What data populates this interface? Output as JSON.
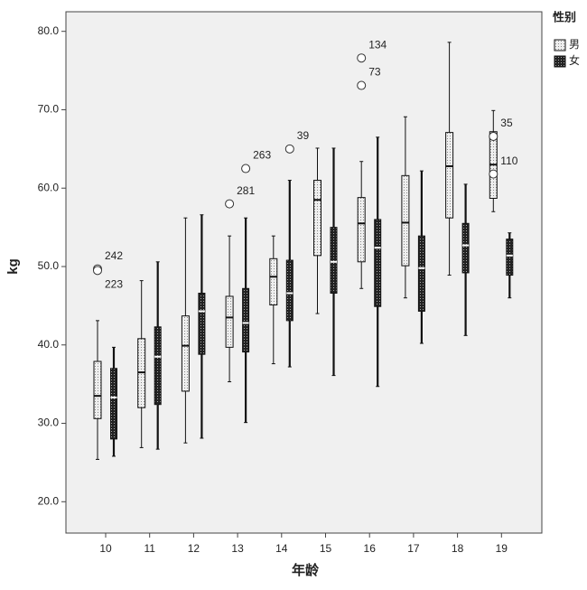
{
  "chart_data": {
    "type": "box",
    "x_label": "年龄",
    "y_label": "kg",
    "legend_title": "性别",
    "categories": [
      "10",
      "11",
      "12",
      "13",
      "14",
      "15",
      "16",
      "17",
      "18",
      "19"
    ],
    "ylim": [
      16,
      82.5
    ],
    "yticks": [
      {
        "value": 20,
        "label": "20.0"
      },
      {
        "value": 30,
        "label": "30.0"
      },
      {
        "value": 40,
        "label": "40.0"
      },
      {
        "value": 50,
        "label": "50.0"
      },
      {
        "value": 60,
        "label": "60.0"
      },
      {
        "value": 70,
        "label": "70.0"
      },
      {
        "value": 80,
        "label": "80.0"
      }
    ],
    "series": [
      {
        "name": "男",
        "color": "#e6e6e6",
        "min": [
          25.4,
          26.9,
          27.5,
          35.3,
          37.6,
          44.0,
          47.2,
          46.0,
          48.9,
          57.0
        ],
        "q1": [
          30.6,
          32.0,
          34.1,
          39.7,
          45.1,
          51.4,
          50.6,
          50.1,
          56.2,
          58.7
        ],
        "median": [
          33.5,
          36.5,
          39.9,
          43.5,
          48.7,
          58.5,
          55.5,
          55.6,
          62.8,
          63.0
        ],
        "q3": [
          37.9,
          40.8,
          43.7,
          46.2,
          51.0,
          61.0,
          58.8,
          61.6,
          67.1,
          67.2
        ],
        "max": [
          43.1,
          48.2,
          56.2,
          53.9,
          53.9,
          65.1,
          63.4,
          69.1,
          78.6,
          69.9
        ],
        "outliers": [
          {
            "category": "10",
            "value": 49.7,
            "label": "242"
          },
          {
            "category": "10",
            "value": 49.5,
            "label": "223"
          },
          {
            "category": "13",
            "value": 58.0,
            "label": "281"
          },
          {
            "category": "16",
            "value": 76.6,
            "label": "134"
          },
          {
            "category": "16",
            "value": 73.1,
            "label": "73"
          },
          {
            "category": "19",
            "value": 66.6,
            "label": "35"
          },
          {
            "category": "19",
            "value": 61.8,
            "label": "110"
          }
        ]
      },
      {
        "name": "女",
        "color": "#222222",
        "min": [
          25.8,
          26.7,
          28.1,
          30.1,
          37.2,
          36.1,
          34.7,
          40.2,
          41.2,
          46.0
        ],
        "q1": [
          28.0,
          32.4,
          38.8,
          39.1,
          43.1,
          46.6,
          44.9,
          44.3,
          49.2,
          48.9
        ],
        "median": [
          33.3,
          38.5,
          44.3,
          42.8,
          46.6,
          50.6,
          52.4,
          49.8,
          52.7,
          51.4
        ],
        "q3": [
          37.0,
          42.3,
          46.6,
          47.2,
          50.8,
          55.0,
          56.0,
          53.9,
          55.5,
          53.5
        ],
        "max": [
          39.7,
          50.6,
          56.6,
          56.2,
          61.0,
          65.1,
          66.5,
          62.2,
          60.5,
          54.3
        ],
        "outliers": [
          {
            "category": "13",
            "value": 62.5,
            "label": "263"
          },
          {
            "category": "14",
            "value": 65.0,
            "label": "39"
          }
        ]
      }
    ]
  }
}
